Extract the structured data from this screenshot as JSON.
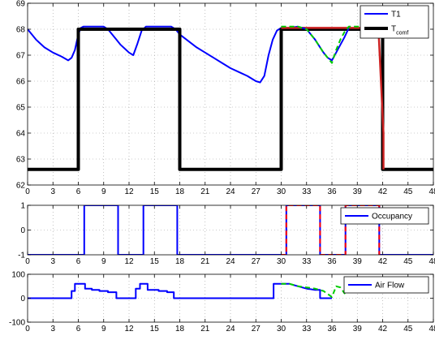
{
  "chart_data": [
    {
      "type": "line",
      "xlim": [
        0,
        48
      ],
      "ylim": [
        62,
        69
      ],
      "xticks": [
        0,
        3,
        6,
        9,
        12,
        15,
        18,
        21,
        24,
        27,
        30,
        33,
        36,
        39,
        42,
        45,
        48
      ],
      "yticks": [
        62,
        63,
        64,
        65,
        66,
        67,
        68,
        69
      ],
      "grid": true,
      "legend_position": "top-right",
      "legend": [
        {
          "label": "T1",
          "sub": "",
          "color": "#0000ff"
        },
        {
          "label": "T",
          "sub": "comf",
          "color": "#000000"
        }
      ],
      "series": [
        {
          "name": "T1",
          "color": "#0000ff",
          "style": "solid",
          "x": [
            0,
            0.5,
            1,
            1.5,
            2,
            3,
            4,
            4.8,
            5.2,
            5.6,
            6,
            6.3,
            6.6,
            7,
            8,
            9,
            9.5,
            10,
            10.5,
            11,
            11.5,
            12,
            12.5,
            13,
            13.5,
            14,
            14.5,
            15,
            16,
            17,
            17.5,
            18,
            19,
            20,
            21,
            22,
            23,
            24,
            25,
            26,
            27,
            27.5,
            28,
            28.5,
            29,
            29.5,
            30,
            31,
            32
          ],
          "y": [
            68.0,
            67.8,
            67.6,
            67.45,
            67.3,
            67.1,
            66.95,
            66.8,
            66.9,
            67.2,
            67.8,
            68.05,
            68.1,
            68.1,
            68.1,
            68.1,
            68.0,
            67.8,
            67.6,
            67.4,
            67.25,
            67.1,
            67.0,
            67.45,
            67.95,
            68.1,
            68.1,
            68.1,
            68.1,
            68.1,
            68.0,
            67.8,
            67.55,
            67.3,
            67.1,
            66.9,
            66.7,
            66.5,
            66.35,
            66.2,
            66.0,
            65.95,
            66.2,
            67.0,
            67.6,
            67.95,
            68.05,
            68.05,
            68.1
          ]
        },
        {
          "name": "",
          "color": "#000000",
          "style": "solid",
          "x": [
            0,
            6,
            6,
            18,
            18,
            30,
            30,
            42,
            42,
            48
          ],
          "y": [
            62.6,
            62.6,
            68.0,
            68.0,
            62.6,
            62.6,
            68.0,
            68.0,
            62.6,
            62.6
          ]
        },
        {
          "name": "",
          "color": "#cc2222",
          "style": "solid",
          "x": [
            30,
            41.5,
            42.1,
            42.1
          ],
          "y": [
            68.05,
            68.05,
            64.0,
            62.6
          ]
        },
        {
          "name": "",
          "color": "#0000ff",
          "style": "solid",
          "x": [
            32,
            33,
            34,
            35,
            35.5,
            36,
            36.5,
            37,
            37.5,
            38
          ],
          "y": [
            68.1,
            68.0,
            67.6,
            67.1,
            66.9,
            66.8,
            67.1,
            67.4,
            67.7,
            68.05
          ]
        },
        {
          "name": "",
          "color": "#00cc00",
          "style": "dashed",
          "x": [
            30,
            32,
            33,
            34,
            35,
            36,
            36.5,
            37,
            37.5,
            38,
            39,
            40,
            41,
            42
          ],
          "y": [
            68.1,
            68.1,
            68.0,
            67.6,
            67.1,
            66.7,
            67.2,
            67.6,
            67.9,
            68.1,
            68.1,
            68.1,
            68.1,
            68.1
          ]
        }
      ]
    },
    {
      "type": "line",
      "xlim": [
        0,
        48
      ],
      "ylim": [
        -1,
        1
      ],
      "xticks": [
        0,
        3,
        6,
        9,
        12,
        15,
        18,
        21,
        24,
        27,
        30,
        33,
        36,
        39,
        42,
        45,
        48
      ],
      "yticks": [
        -1,
        0,
        1
      ],
      "grid": true,
      "legend_position": "top-right",
      "legend": [
        {
          "label": "Occupancy",
          "sub": "",
          "color": "#0000ff"
        }
      ],
      "series": [
        {
          "name": "Occupancy",
          "color": "#0000ff",
          "style": "solid",
          "x": [
            0,
            6.7,
            6.7,
            10.7,
            10.7,
            13.7,
            13.7,
            17.7,
            17.7,
            30.6,
            30.6,
            34.6,
            34.6,
            37.6,
            37.6,
            41.6,
            41.6,
            48
          ],
          "y": [
            -1,
            -1,
            1,
            1,
            -1,
            -1,
            1,
            1,
            -1,
            -1,
            1,
            1,
            -1,
            -1,
            1,
            1,
            -1,
            -1
          ]
        },
        {
          "name": "",
          "color": "#ff0000",
          "style": "dashed",
          "x": [
            30,
            30.6,
            30.6,
            34.6,
            34.6,
            37.6,
            37.6,
            41.6,
            41.6,
            42
          ],
          "y": [
            -1,
            -1,
            1,
            1,
            -1,
            -1,
            1,
            1,
            -1,
            -1
          ]
        }
      ]
    },
    {
      "type": "line",
      "xlim": [
        0,
        48
      ],
      "ylim": [
        -100,
        100
      ],
      "xticks": [
        0,
        3,
        6,
        9,
        12,
        15,
        18,
        21,
        24,
        27,
        30,
        33,
        36,
        39,
        42,
        45,
        48
      ],
      "yticks": [
        -100,
        0,
        100
      ],
      "grid": true,
      "legend_position": "top-right",
      "legend": [
        {
          "label": "Air Flow",
          "sub": "",
          "color": "#0000ff"
        }
      ],
      "series": [
        {
          "name": "Air Flow",
          "color": "#0000ff",
          "style": "solid",
          "x": [
            0,
            5.2,
            5.2,
            5.6,
            5.6,
            6.8,
            6.8,
            7.6,
            7.6,
            8.5,
            8.5,
            9.5,
            9.5,
            10.5,
            10.5,
            12.8,
            12.8,
            13.3,
            13.3,
            14.2,
            14.2,
            15.5,
            15.5,
            16.5,
            16.5,
            17.3,
            17.3,
            29.1,
            29.1,
            31,
            32,
            33,
            34,
            34.6,
            34.6,
            36
          ],
          "y": [
            0,
            0,
            30,
            30,
            60,
            60,
            40,
            40,
            35,
            35,
            30,
            30,
            25,
            25,
            0,
            0,
            40,
            40,
            60,
            60,
            35,
            35,
            30,
            30,
            25,
            25,
            0,
            0,
            60,
            60,
            50,
            40,
            35,
            35,
            0,
            0
          ]
        },
        {
          "name": "",
          "color": "#00cc00",
          "style": "dashed",
          "x": [
            30,
            31,
            32,
            33,
            34,
            35,
            36,
            36.5,
            37,
            37.5,
            38,
            39,
            40,
            41,
            42
          ],
          "y": [
            60,
            60,
            50,
            45,
            40,
            30,
            5,
            50,
            45,
            20,
            60,
            60,
            65,
            60,
            60
          ]
        }
      ]
    }
  ]
}
